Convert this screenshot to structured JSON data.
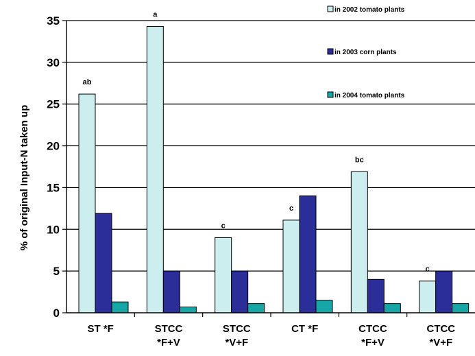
{
  "chart_data": {
    "type": "bar",
    "title": "",
    "xlabel": "",
    "ylabel": "% of original Input-N taken up",
    "ylim": [
      0,
      35
    ],
    "yticks": [
      0,
      5,
      10,
      15,
      20,
      25,
      30,
      35
    ],
    "grid": true,
    "legend_position": "top-right",
    "categories": [
      [
        "ST *F"
      ],
      [
        "STCC",
        "*F+V"
      ],
      [
        "STCC",
        "*V+F"
      ],
      [
        "CT *F"
      ],
      [
        "CTCC",
        "*F+V"
      ],
      [
        "CTCC",
        "*V+F"
      ]
    ],
    "series": [
      {
        "name": "in 2002 tomato plants",
        "color": "#cdeeee",
        "values": [
          26.2,
          34.3,
          9.0,
          11.1,
          16.9,
          3.8
        ]
      },
      {
        "name": "in 2003 corn plants",
        "color": "#2b2e99",
        "values": [
          11.9,
          5.0,
          5.0,
          14.0,
          4.0,
          5.0
        ]
      },
      {
        "name": "in 2004 tomato plants",
        "color": "#16a6a6",
        "values": [
          1.3,
          0.7,
          1.1,
          1.5,
          1.1,
          1.1
        ]
      }
    ],
    "annotations": [
      "ab",
      "a",
      "c",
      "c",
      "bc",
      "c"
    ]
  }
}
